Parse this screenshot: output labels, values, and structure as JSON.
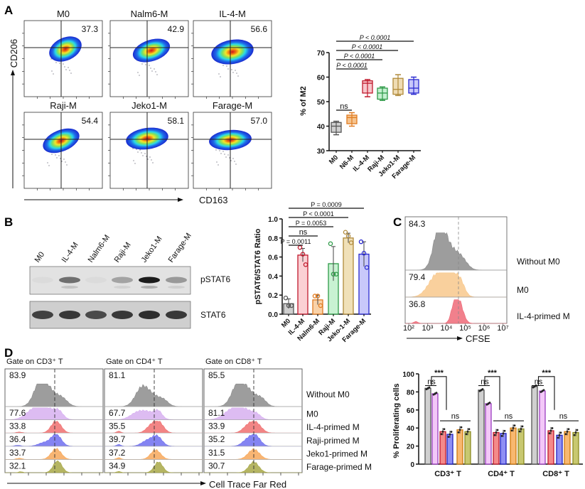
{
  "panels": {
    "A": "A",
    "B": "B",
    "C": "C",
    "D": "D"
  },
  "flow_a": {
    "x_label": "CD163",
    "y_label": "CD206",
    "plots": [
      {
        "title": "M0",
        "value": "37.3"
      },
      {
        "title": "Nalm6-M",
        "value": "42.9"
      },
      {
        "title": "IL-4-M",
        "value": "56.6"
      },
      {
        "title": "Raji-M",
        "value": "54.4"
      },
      {
        "title": "Jeko1-M",
        "value": "58.1"
      },
      {
        "title": "Farage-M",
        "value": "57.0"
      }
    ]
  },
  "blot": {
    "lanes": [
      "M0",
      "IL-4-M",
      "Nalm6-M",
      "Raji-M",
      "Jeko1-M",
      "Farage-M"
    ],
    "bands": [
      "pSTAT6",
      "STAT6"
    ]
  },
  "hist_c": {
    "x_label": "CFSE",
    "ticks": [
      "10²",
      "10³",
      "10⁴",
      "10⁵",
      "10⁶",
      "10⁷"
    ],
    "rows": [
      {
        "label": "Without M0",
        "value": "84.3",
        "color": "#8c8c8c"
      },
      {
        "label": "M0",
        "value": "79.4",
        "color": "#f8c88c"
      },
      {
        "label": "IL-4-primed M",
        "value": "36.8",
        "color": "#ee6a78"
      }
    ]
  },
  "hist_d": {
    "x_label": "Cell Trace Far Red",
    "row_labels": [
      "Without M0",
      "M0",
      "IL-4-primed M",
      "Raji-primed M",
      "Jeko1-primed M",
      "Farage-primed M"
    ],
    "row_colors": [
      "#8c8c8c",
      "#d7b0f0",
      "#f07070",
      "#6f6ff0",
      "#f7a85a",
      "#a8a848"
    ],
    "gates": [
      {
        "title": "Gate on CD3⁺ T",
        "values": [
          "83.9",
          "77.6",
          "33.8",
          "36.4",
          "33.7",
          "32.1"
        ]
      },
      {
        "title": "Gate on CD4⁺ T",
        "values": [
          "81.1",
          "67.7",
          "35.5",
          "39.7",
          "37.2",
          "34.9"
        ]
      },
      {
        "title": "Gate on CD8⁺ T",
        "values": [
          "85.5",
          "81.1",
          "33.9",
          "35.2",
          "31.5",
          "30.7"
        ]
      }
    ]
  },
  "chart_data": [
    {
      "type": "box",
      "ylabel": "% of M2",
      "ylim": [
        30,
        70
      ],
      "yticks": [
        "30",
        "40",
        "50",
        "60",
        "70"
      ],
      "categories": [
        "M0",
        "N6-M",
        "IL-4-M",
        "Raji-M",
        "Jeko1-M",
        "Farage-M"
      ],
      "colors": [
        [
          "#555555",
          "#cfcfcf"
        ],
        [
          "#e07b20",
          "#f6c48f"
        ],
        [
          "#c0192c",
          "#f7c6cc"
        ],
        [
          "#2e9a48",
          "#c4f0d0"
        ],
        [
          "#b08a3a",
          "#efdcb4"
        ],
        [
          "#2a2ad0",
          "#c8c8fa"
        ]
      ],
      "boxes": [
        {
          "min": 36.5,
          "q1": 37.5,
          "median": 40,
          "q3": 41.5,
          "max": 42
        },
        {
          "min": 40,
          "q1": 41,
          "median": 43.5,
          "q3": 44.5,
          "max": 45.5
        },
        {
          "min": 52,
          "q1": 53.5,
          "median": 57.5,
          "q3": 58.5,
          "max": 59
        },
        {
          "min": 50.5,
          "q1": 51,
          "median": 53.5,
          "q3": 55.5,
          "max": 56
        },
        {
          "min": 52.5,
          "q1": 53,
          "median": 55,
          "q3": 59.5,
          "max": 61
        },
        {
          "min": 53,
          "q1": 53.5,
          "median": 55.5,
          "q3": 59,
          "max": 60
        }
      ],
      "comparisons": [
        {
          "from": 0,
          "to": 1,
          "label": "ns"
        },
        {
          "from": 0,
          "to": 2,
          "label": "P < 0.0001"
        },
        {
          "from": 0,
          "to": 3,
          "label": "P < 0.0001"
        },
        {
          "from": 0,
          "to": 4,
          "label": "P < 0.0001"
        },
        {
          "from": 0,
          "to": 5,
          "label": "P < 0.0001"
        }
      ]
    },
    {
      "type": "bar",
      "ylabel": "pSTAT6/STAT6 Ratio",
      "ylim": [
        0,
        1.0
      ],
      "yticks": [
        "0.0",
        "0.2",
        "0.4",
        "0.6",
        "0.8",
        "1.0"
      ],
      "categories": [
        "M0",
        "IL-4-M",
        "Nalm6-M",
        "Raji-M",
        "Jeko-1-M",
        "Farage-M"
      ],
      "colors": [
        [
          "#555555",
          "#cfcfcf"
        ],
        [
          "#c0192c",
          "#fbd0d4"
        ],
        [
          "#e07b20",
          "#f9d2a8"
        ],
        [
          "#2e9a48",
          "#c8f2d2"
        ],
        [
          "#b08a3a",
          "#f0e0b8"
        ],
        [
          "#2a2ad0",
          "#c8c8fa"
        ]
      ],
      "values": [
        0.11,
        0.62,
        0.15,
        0.53,
        0.8,
        0.63
      ],
      "errors": [
        0.05,
        0.07,
        0.05,
        0.18,
        0.05,
        0.13
      ],
      "points": [
        [
          0.17,
          0.09,
          0.09
        ],
        [
          0.7,
          0.63,
          0.52
        ],
        [
          0.19,
          0.19,
          0.09
        ],
        [
          0.74,
          0.42,
          0.42
        ],
        [
          0.86,
          0.82,
          0.75
        ],
        [
          0.76,
          0.64,
          0.49
        ]
      ],
      "comparisons": [
        {
          "from": 0,
          "to": 1,
          "label": "P = 0.0011"
        },
        {
          "from": 0,
          "to": 2,
          "label": "ns"
        },
        {
          "from": 0,
          "to": 3,
          "label": "P = 0.0053"
        },
        {
          "from": 0,
          "to": 4,
          "label": "P < 0.0001"
        },
        {
          "from": 0,
          "to": 5,
          "label": "P = 0.0009"
        }
      ]
    },
    {
      "type": "bar",
      "ylabel": "% Proliferating cells",
      "ylim": [
        0,
        100
      ],
      "yticks": [
        "0",
        "20",
        "40",
        "60",
        "80",
        "100"
      ],
      "categories": [
        "CD3⁺ T",
        "CD4⁺ T",
        "CD8⁺ T"
      ],
      "series_colors": [
        [
          "#555555",
          "#d0d0d0"
        ],
        [
          "#9b3fbf",
          "#f3c8f8"
        ],
        [
          "#c0192c",
          "#f48a8a"
        ],
        [
          "#2222c0",
          "#8f8ff4"
        ],
        [
          "#d07a10",
          "#f8b870"
        ],
        [
          "#8a8a20",
          "#c8c870"
        ]
      ],
      "series": [
        {
          "values": [
            84,
            82,
            86
          ]
        },
        {
          "values": [
            78,
            67,
            81
          ]
        },
        {
          "values": [
            36,
            35,
            37
          ]
        },
        {
          "values": [
            33,
            34,
            32
          ]
        },
        {
          "values": [
            38,
            40,
            36
          ]
        },
        {
          "values": [
            36,
            39,
            35
          ]
        }
      ],
      "annotations": {
        "pair": "ns",
        "cross": "***",
        "group": "ns"
      }
    }
  ]
}
